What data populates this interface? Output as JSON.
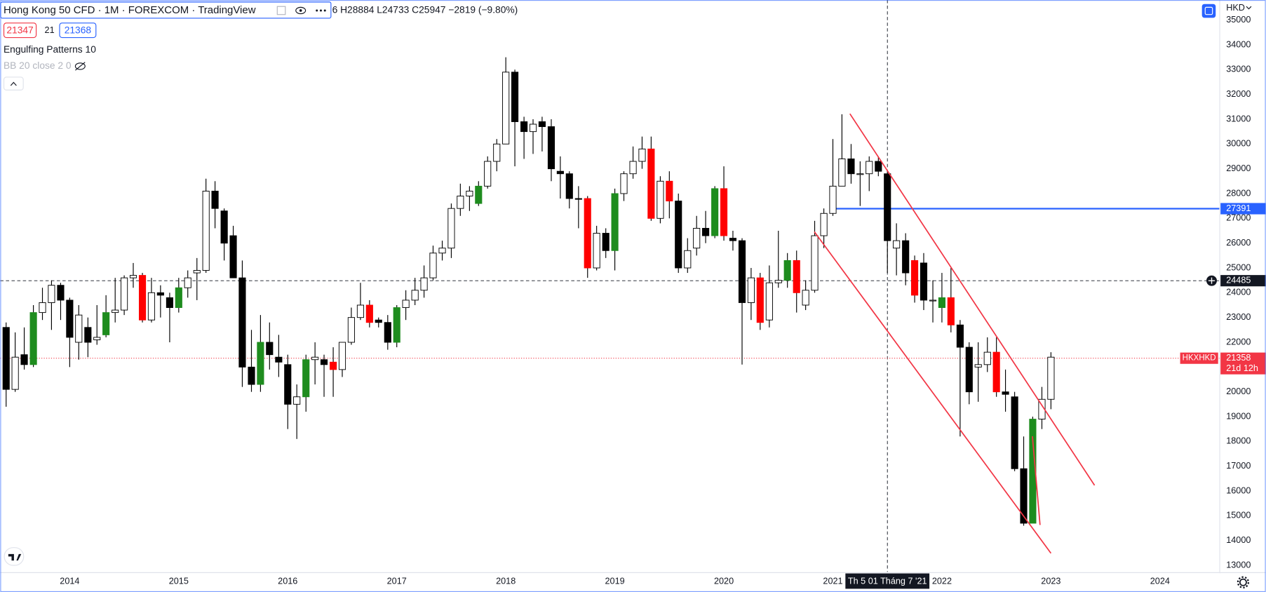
{
  "chart_data": {
    "type": "candlestick",
    "symbol": "Hong Kong 50 CFD · 1M · FOREXCOM · TradingView",
    "ohlc_text": "6 H28884 L24733 C25947 −2819 (−9.80%)",
    "currency": "HKD",
    "buttons": [
      21347,
      21,
      21368
    ],
    "indicators": [
      "Engulfing Patterns 10",
      "BB 20 close 2 0"
    ],
    "x": [
      2013.417,
      2013.5,
      2013.583,
      2013.667,
      2013.75,
      2013.833,
      2013.917,
      2014,
      2014.083,
      2014.167,
      2014.25,
      2014.333,
      2014.417,
      2014.5,
      2014.583,
      2014.667,
      2014.75,
      2014.833,
      2014.917,
      2015,
      2015.083,
      2015.167,
      2015.25,
      2015.333,
      2015.417,
      2015.5,
      2015.583,
      2015.667,
      2015.75,
      2015.833,
      2015.917,
      2016,
      2016.083,
      2016.167,
      2016.25,
      2016.333,
      2016.417,
      2016.5,
      2016.583,
      2016.667,
      2016.75,
      2016.833,
      2016.917,
      2017,
      2017.083,
      2017.167,
      2017.25,
      2017.333,
      2017.417,
      2017.5,
      2017.583,
      2017.667,
      2017.75,
      2017.833,
      2017.917,
      2018,
      2018.083,
      2018.167,
      2018.25,
      2018.333,
      2018.417,
      2018.5,
      2018.583,
      2018.667,
      2018.75,
      2018.833,
      2018.917,
      2019,
      2019.083,
      2019.167,
      2019.25,
      2019.333,
      2019.417,
      2019.5,
      2019.583,
      2019.667,
      2019.75,
      2019.833,
      2019.917,
      2020,
      2020.083,
      2020.167,
      2020.25,
      2020.333,
      2020.417,
      2020.5,
      2020.583,
      2020.667,
      2020.75,
      2020.833,
      2020.917,
      2021,
      2021.083,
      2021.167,
      2021.25,
      2021.333,
      2021.417,
      2021.5,
      2021.583,
      2021.667,
      2021.75,
      2021.833,
      2021.917,
      2022,
      2022.083,
      2022.167,
      2022.25,
      2022.333,
      2022.417,
      2022.5,
      2022.583,
      2022.667,
      2022.75,
      2022.833,
      2022.917,
      2023
    ],
    "open": [
      22600,
      20100,
      21500,
      21100,
      23200,
      23600,
      24300,
      23700,
      22000,
      22600,
      22100,
      22300,
      23200,
      23300,
      24600,
      24700,
      22900,
      24000,
      23800,
      23400,
      24200,
      24800,
      24900,
      28100,
      27300,
      26300,
      24600,
      21000,
      20300,
      22000,
      21400,
      21100,
      19500,
      19800,
      21300,
      21300,
      21200,
      20900,
      22000,
      23000,
      23500,
      22900,
      22800,
      22000,
      23400,
      23700,
      24100,
      24600,
      25600,
      25800,
      27400,
      27900,
      27600,
      28300,
      29300,
      30000,
      32900,
      30900,
      30500,
      30900,
      30700,
      28900,
      28800,
      27800,
      27800,
      25000,
      26400,
      25700,
      28000,
      28800,
      29300,
      29800,
      27000,
      28500,
      27700,
      25000,
      25800,
      26600,
      26300,
      28200,
      26200,
      26100,
      23600,
      24600,
      22900,
      24400,
      24500,
      25300,
      23500,
      24100,
      26300,
      27200,
      28300,
      29400,
      28800,
      28800,
      29300,
      28800,
      25800,
      26100,
      25300,
      25200,
      23700,
      23400,
      23800,
      22700,
      21800,
      21000,
      21100,
      21600,
      20000,
      19800,
      16900,
      14700,
      18900,
      19700
    ],
    "high": [
      22800,
      22400,
      22600,
      23500,
      24200,
      24500,
      24400,
      23800,
      23500,
      23000,
      23500,
      23900,
      24600,
      24700,
      25200,
      24800,
      24600,
      24300,
      24000,
      24600,
      24900,
      25400,
      28600,
      28500,
      27400,
      26700,
      25300,
      22500,
      23100,
      22800,
      22300,
      21500,
      20300,
      21500,
      22000,
      21500,
      21800,
      22000,
      23400,
      24400,
      23700,
      23000,
      23100,
      23500,
      24100,
      24600,
      25100,
      25900,
      26100,
      27600,
      28400,
      28300,
      28500,
      29500,
      30200,
      33500,
      33000,
      31100,
      31000,
      31100,
      31000,
      29500,
      28900,
      28300,
      27900,
      26700,
      26600,
      28200,
      28900,
      29900,
      30300,
      30300,
      28700,
      28900,
      28000,
      26200,
      27100,
      27300,
      28300,
      29100,
      26500,
      26200,
      25000,
      24800,
      25100,
      26500,
      25600,
      25700,
      24500,
      26900,
      27400,
      30200,
      31200,
      30000,
      29300,
      29500,
      29500,
      28900,
      26800,
      26400,
      25500,
      25600,
      24500,
      24800,
      25000,
      22900,
      22000,
      22000,
      22200,
      22200,
      20900,
      20000,
      18200,
      19000,
      20200,
      21600
    ],
    "low": [
      19400,
      20000,
      20900,
      21000,
      22900,
      22500,
      22900,
      21000,
      21300,
      21400,
      21900,
      22200,
      22800,
      23100,
      24200,
      22800,
      22800,
      23000,
      22000,
      23200,
      23800,
      23700,
      24800,
      26600,
      25300,
      24600,
      20200,
      20000,
      20000,
      20900,
      20600,
      18500,
      18100,
      19200,
      20300,
      19800,
      19800,
      20600,
      21900,
      22900,
      22600,
      22600,
      21700,
      21800,
      22900,
      23500,
      23800,
      24500,
      25300,
      25400,
      27100,
      27300,
      27500,
      28200,
      28900,
      30000,
      29100,
      29400,
      29600,
      29700,
      28500,
      27800,
      27400,
      26600,
      24600,
      24900,
      25400,
      24900,
      27700,
      28600,
      29000,
      26900,
      26800,
      27000,
      24800,
      24800,
      25500,
      26000,
      26200,
      26100,
      25700,
      21100,
      22900,
      22500,
      22600,
      24200,
      24200,
      23200,
      23300,
      24000,
      25800,
      27100,
      28300,
      28400,
      27500,
      28100,
      28700,
      24800,
      24700,
      24300,
      23600,
      23300,
      22800,
      22800,
      22400,
      18200,
      19500,
      19600,
      20800,
      19800,
      19200,
      16800,
      14600,
      14700,
      18500,
      19300
    ],
    "close": [
      20100,
      21400,
      21100,
      23200,
      23600,
      24300,
      23700,
      22200,
      23100,
      22000,
      22200,
      23200,
      23300,
      24600,
      24700,
      22900,
      24000,
      23900,
      23400,
      24200,
      24600,
      24900,
      28100,
      27400,
      26000,
      24600,
      21000,
      20300,
      22000,
      21500,
      21200,
      19500,
      19800,
      21300,
      21400,
      21100,
      20900,
      22000,
      23000,
      23500,
      22800,
      22800,
      22000,
      23400,
      23700,
      24100,
      24600,
      25600,
      25800,
      27400,
      27900,
      28100,
      28300,
      29300,
      30000,
      32900,
      30900,
      30500,
      30800,
      30700,
      29000,
      28800,
      27800,
      27800,
      25000,
      26400,
      25700,
      28000,
      28800,
      29300,
      29800,
      27000,
      28500,
      27700,
      25000,
      25700,
      26600,
      26300,
      28200,
      26300,
      26100,
      23600,
      24600,
      22800,
      24400,
      24500,
      25300,
      24000,
      24100,
      26300,
      27200,
      28300,
      29400,
      28800,
      28800,
      29300,
      28900,
      26100,
      26100,
      24800,
      23900,
      23700,
      23700,
      23800,
      22700,
      21800,
      20000,
      21100,
      21600,
      20000,
      19900,
      16900,
      14700,
      18900,
      19700,
      21400
    ],
    "colors": [
      "#000",
      "#fff",
      "#000",
      "#1e8c1e",
      "#fff",
      "#fff",
      "#000",
      "#000",
      "#fff",
      "#000",
      "#fff",
      "#1e8c1e",
      "#fff",
      "#fff",
      "#fff",
      "#f00",
      "#fff",
      "#000",
      "#000",
      "#1e8c1e",
      "#fff",
      "#fff",
      "#fff",
      "#000",
      "#000",
      "#000",
      "#000",
      "#000",
      "#1e8c1e",
      "#000",
      "#000",
      "#000",
      "#fff",
      "#1e8c1e",
      "#fff",
      "#000",
      "#f00",
      "#fff",
      "#fff",
      "#fff",
      "#f00",
      "#000",
      "#000",
      "#1e8c1e",
      "#fff",
      "#fff",
      "#fff",
      "#fff",
      "#fff",
      "#fff",
      "#fff",
      "#fff",
      "#1e8c1e",
      "#fff",
      "#fff",
      "#fff",
      "#000",
      "#000",
      "#fff",
      "#000",
      "#000",
      "#000",
      "#000",
      "#000",
      "#f00",
      "#fff",
      "#000",
      "#1e8c1e",
      "#fff",
      "#fff",
      "#fff",
      "#f00",
      "#fff",
      "#f00",
      "#000",
      "#fff",
      "#fff",
      "#000",
      "#1e8c1e",
      "#f00",
      "#000",
      "#000",
      "#fff",
      "#f00",
      "#fff",
      "#fff",
      "#1e8c1e",
      "#f00",
      "#fff",
      "#fff",
      "#fff",
      "#fff",
      "#fff",
      "#000",
      "#fff",
      "#fff",
      "#000",
      "#000",
      "#fff",
      "#000",
      "#f00",
      "#000",
      "#fff",
      "#1e8c1e",
      "#f00",
      "#000",
      "#000",
      "#fff",
      "#fff",
      "#f00",
      "#000",
      "#000",
      "#000",
      "#1e8c1e",
      "#fff",
      "#fff"
    ],
    "xlim": [
      2013.363,
      2024.548
    ],
    "xticks": [
      2014,
      2015,
      2016,
      2017,
      2018,
      2019,
      2020,
      2021,
      2022,
      2023,
      2024
    ],
    "ylim": [
      12740,
      35810
    ],
    "yticks": [
      13000,
      14000,
      15000,
      16000,
      17000,
      18000,
      19000,
      20000,
      21000,
      22000,
      23000,
      24000,
      25000,
      26000,
      27000,
      28000,
      29000,
      30000,
      31000,
      32000,
      33000,
      34000,
      35000
    ],
    "level": {
      "value": 27391,
      "from": 2021.0,
      "color": "#2962ff"
    },
    "price_line": {
      "value": 21358,
      "countdown": "21d 12h",
      "name": "HKXHKD",
      "color": "#f23645"
    },
    "crosshair": {
      "x": 2021.5,
      "x_label": "Th 5 01 Tháng 7 '21",
      "y": 24485
    },
    "trendlines": [
      {
        "color": "#f23645",
        "points": [
          [
            2021.156,
            31220
          ],
          [
            2023.4,
            16230
          ]
        ]
      },
      {
        "color": "#f23645",
        "points": [
          [
            2020.83,
            26460
          ],
          [
            2023.0,
            13490
          ]
        ]
      },
      {
        "color": "#f23645",
        "points": [
          [
            2022.83,
            18210
          ],
          [
            2022.9,
            14630
          ]
        ]
      }
    ]
  }
}
